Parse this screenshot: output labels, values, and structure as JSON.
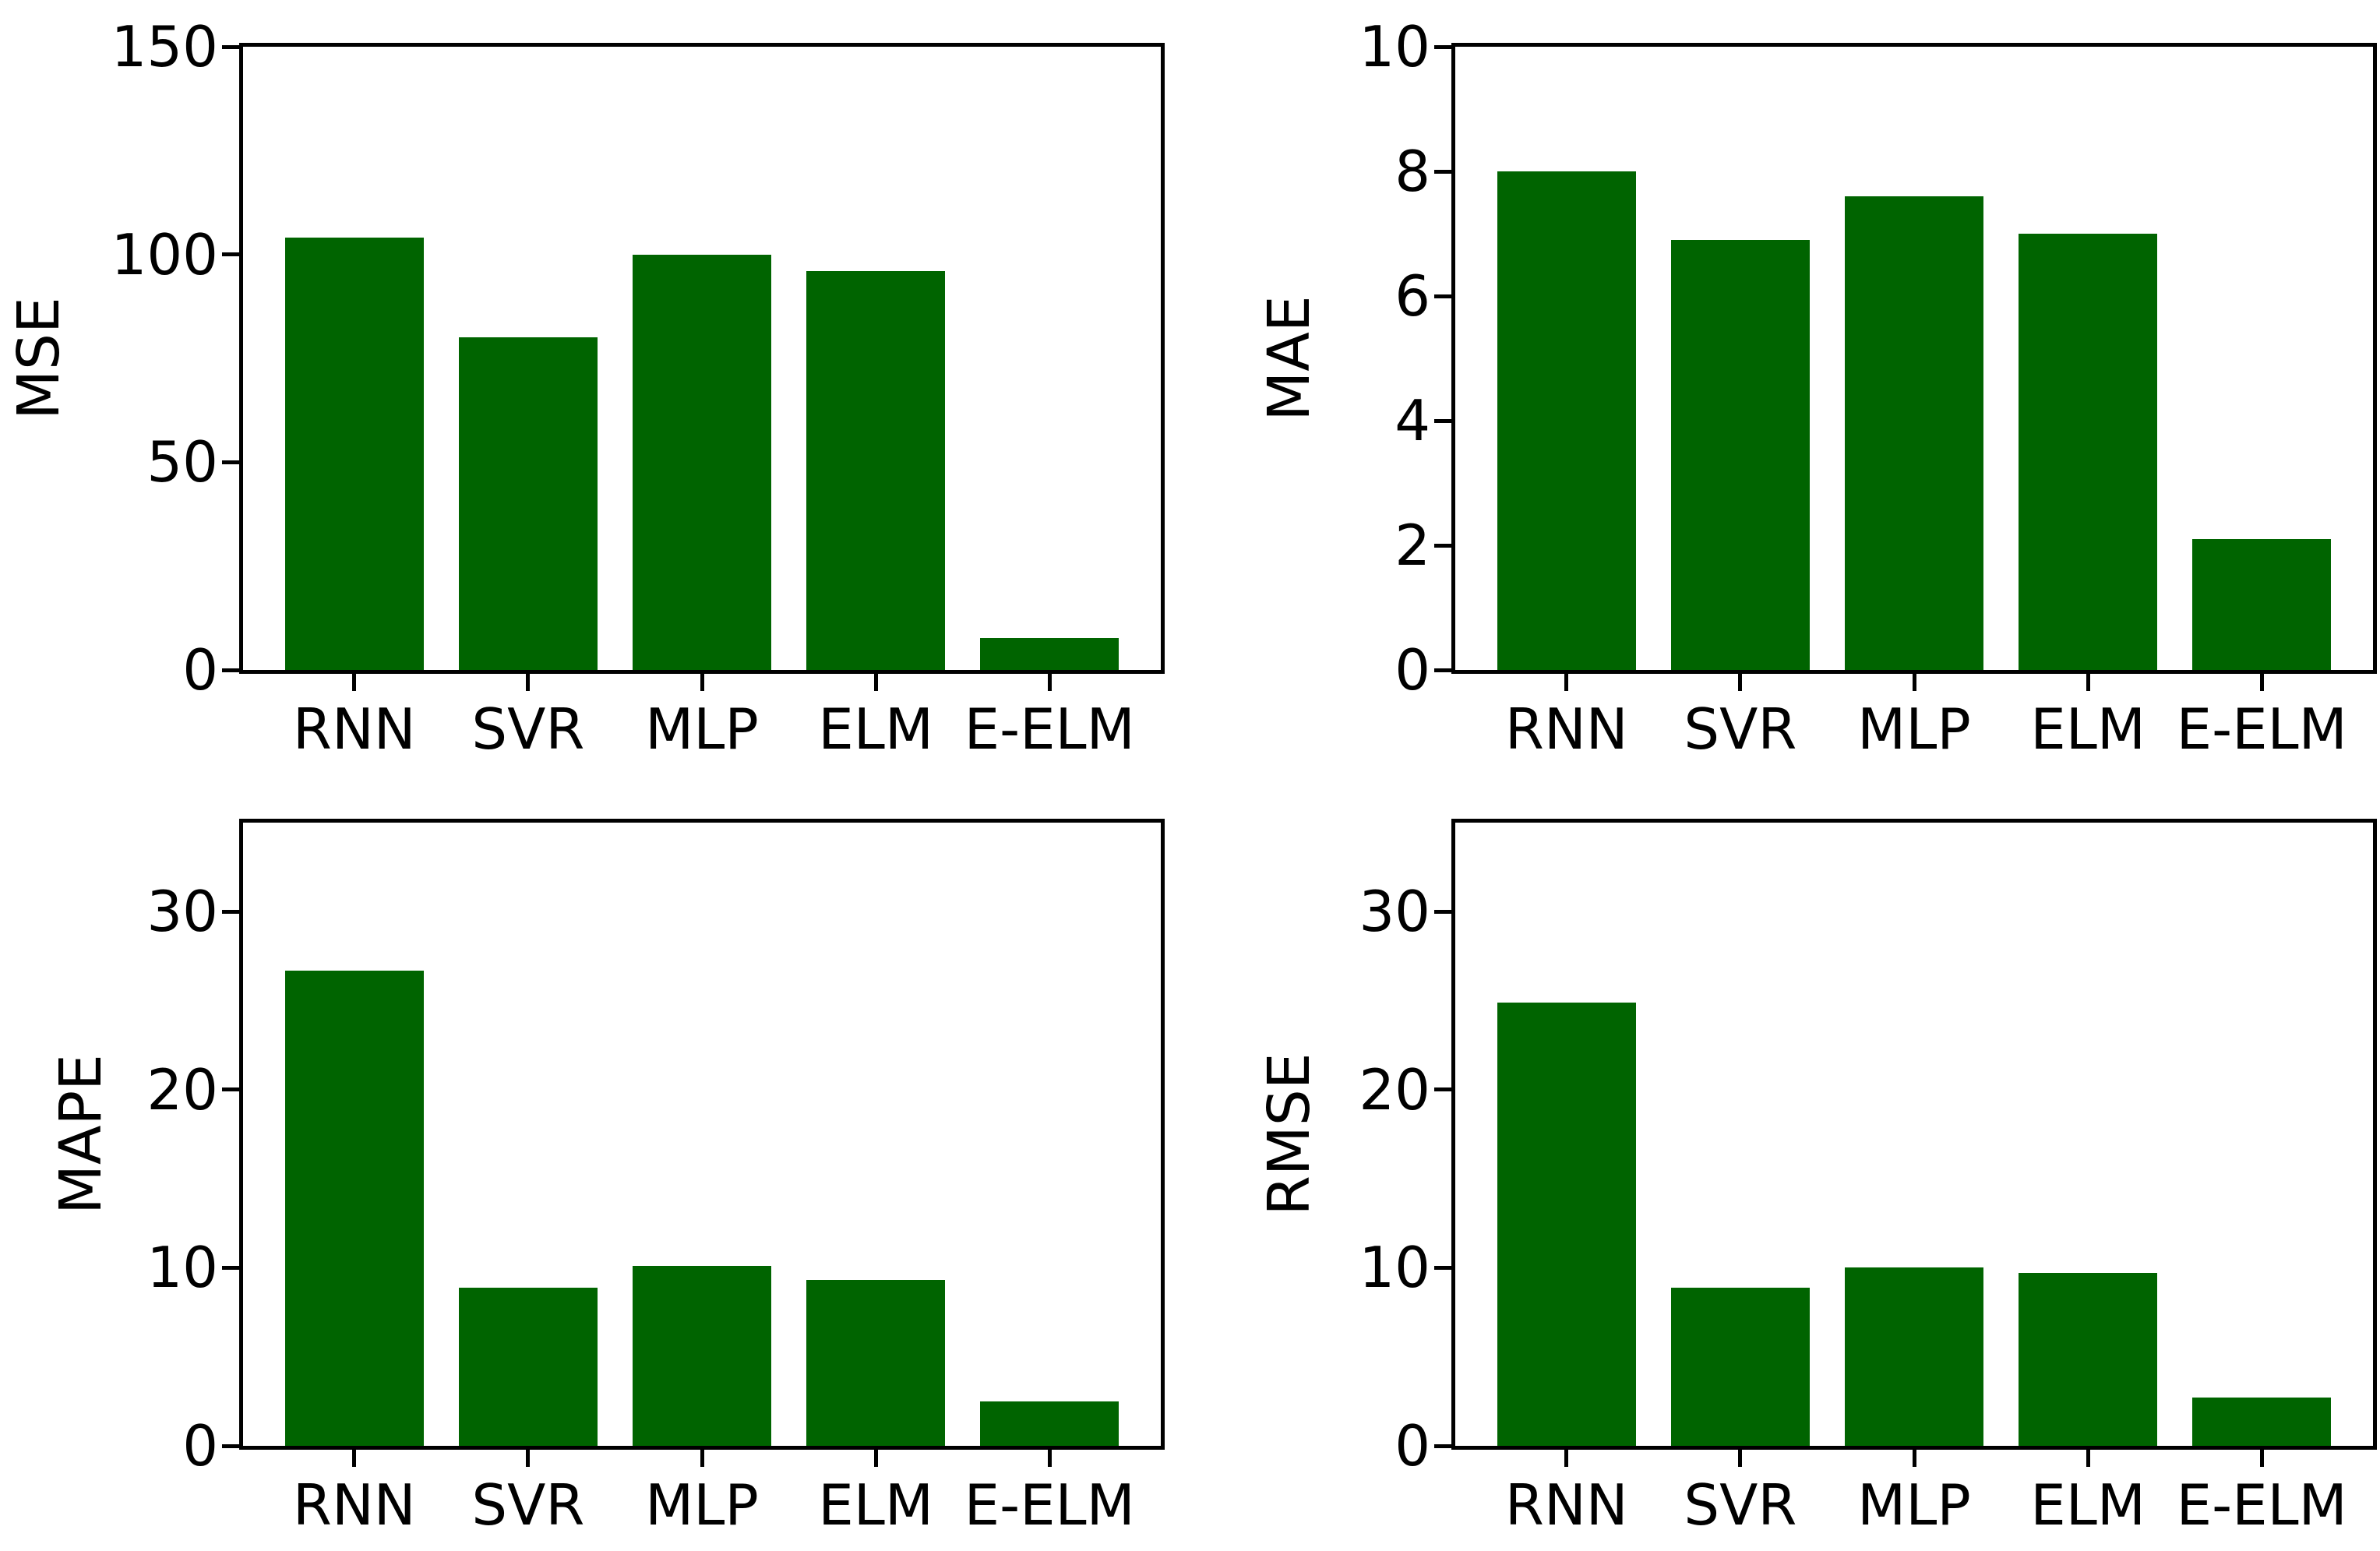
{
  "figure": {
    "background_color": "#ffffff",
    "bar_color": "#006400",
    "axis_color": "#000000"
  },
  "chart_data": [
    {
      "type": "bar",
      "title": "",
      "xlabel": "",
      "ylabel": "MSE",
      "categories": [
        "RNN",
        "SVR",
        "MLP",
        "ELM",
        "E-ELM"
      ],
      "values": [
        104,
        80,
        100,
        96,
        7.7
      ],
      "yticks": [
        0,
        50,
        100,
        150
      ],
      "ylim": [
        0,
        150
      ],
      "grid": false,
      "legend": false
    },
    {
      "type": "bar",
      "title": "",
      "xlabel": "",
      "ylabel": "MAE",
      "categories": [
        "RNN",
        "SVR",
        "MLP",
        "ELM",
        "E-ELM"
      ],
      "values": [
        8.0,
        6.9,
        7.6,
        7.0,
        2.1
      ],
      "yticks": [
        0,
        2,
        4,
        6,
        8,
        10
      ],
      "ylim": [
        0,
        10
      ],
      "grid": false,
      "legend": false
    },
    {
      "type": "bar",
      "title": "",
      "xlabel": "",
      "ylabel": "MAPE",
      "categories": [
        "RNN",
        "SVR",
        "MLP",
        "ELM",
        "E-ELM"
      ],
      "values": [
        26.7,
        8.9,
        10.1,
        9.3,
        2.5
      ],
      "yticks": [
        0,
        10,
        20,
        30
      ],
      "ylim": [
        0,
        35
      ],
      "grid": false,
      "legend": false
    },
    {
      "type": "bar",
      "title": "",
      "xlabel": "",
      "ylabel": "RMSE",
      "categories": [
        "RNN",
        "SVR",
        "MLP",
        "ELM",
        "E-ELM"
      ],
      "values": [
        24.9,
        8.9,
        10.0,
        9.7,
        2.7
      ],
      "yticks": [
        0,
        10,
        20,
        30
      ],
      "ylim": [
        0,
        35
      ],
      "grid": false,
      "legend": false
    }
  ]
}
